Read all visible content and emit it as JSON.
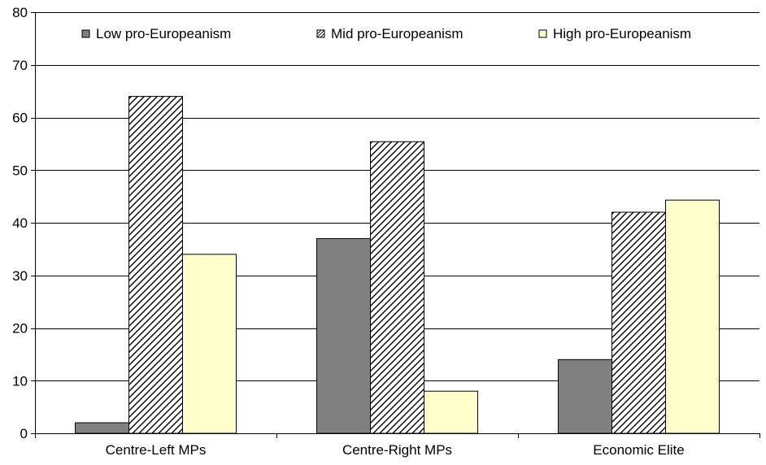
{
  "chart_data": {
    "type": "bar",
    "categories": [
      "Centre-Left MPs",
      "Centre-Right MPs",
      "Economic Elite"
    ],
    "series": [
      {
        "name": "Low pro-Europeanism",
        "values": [
          2,
          37,
          14
        ],
        "fill": "solid-gray"
      },
      {
        "name": "Mid pro-Europeanism",
        "values": [
          64,
          55.4,
          42
        ],
        "fill": "diagonal-hatch"
      },
      {
        "name": "High pro-Europeanism",
        "values": [
          34,
          8,
          44.3
        ],
        "fill": "pale-yellow"
      }
    ],
    "ylim": [
      0,
      80
    ],
    "yticks": [
      0,
      10,
      20,
      30,
      40,
      50,
      60,
      70,
      80
    ],
    "grid": true,
    "legend": "top-inside",
    "colors": {
      "low": "#808080",
      "mid": "#ffffff",
      "high": "#ffffcc",
      "grid": "#000000"
    }
  }
}
